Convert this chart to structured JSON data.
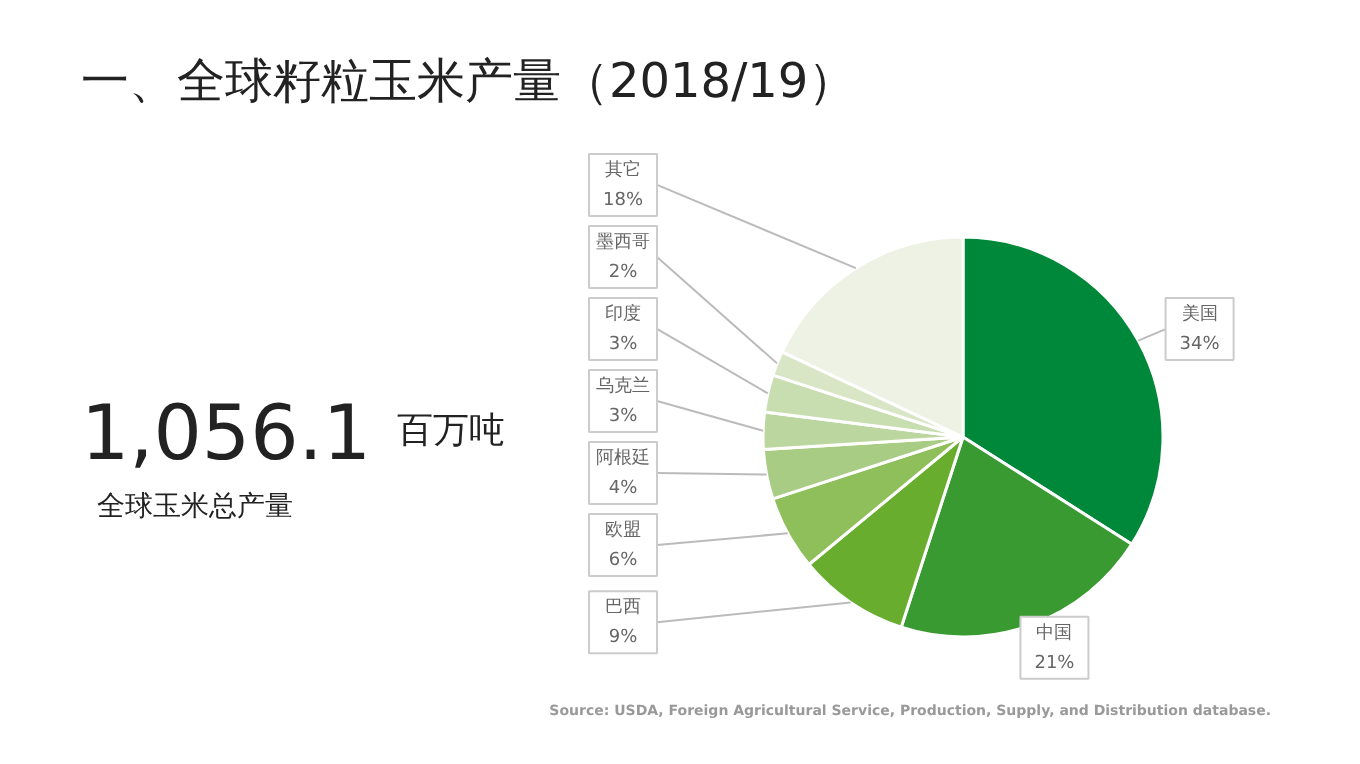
{
  "chart_data": {
    "type": "pie",
    "title": "一、全球籽粒玉米产量（2018/19）",
    "categories": [
      "美国",
      "中国",
      "巴西",
      "欧盟",
      "阿根廷",
      "乌克兰",
      "印度",
      "墨西哥",
      "其它"
    ],
    "values": [
      34,
      21,
      9,
      6,
      4,
      3,
      3,
      2,
      18
    ],
    "value_labels": [
      "34%",
      "21%",
      "9%",
      "6%",
      "4%",
      "3%",
      "3%",
      "2%",
      "18%"
    ],
    "colors": [
      "#00883a",
      "#3a9a32",
      "#68ad2e",
      "#8fbf5a",
      "#a9cc85",
      "#bcd69f",
      "#c9deb0",
      "#d8e6c6",
      "#edf2e4"
    ],
    "annotations": [
      "1,056.1",
      "百万吨",
      "全球玉米总产量",
      "Source: USDA, Foreign Agricultural Service, Production, Supply, and Distribution database."
    ],
    "data_labels": false
  }
}
